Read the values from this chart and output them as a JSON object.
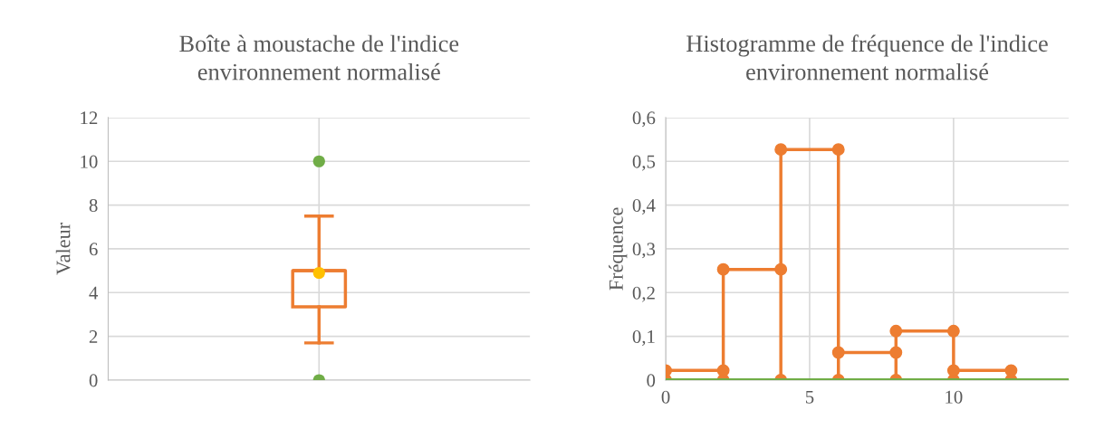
{
  "chart_data": [
    {
      "type": "box",
      "title": "Boîte à moustache de l'indice\nenvironnement normalisé",
      "ylabel": "Valeur",
      "categories": [
        null
      ],
      "series": [
        {
          "type": "box",
          "color": "#ed7d31",
          "boxes": [
            {
              "low": 1.7,
              "q1": 3.35,
              "median": 5.0,
              "q3": 5.0,
              "high": 7.5
            }
          ]
        },
        {
          "type": "scatter",
          "color": "#ffc000",
          "values": [
            4.9
          ]
        },
        {
          "type": "scatter",
          "color": "#70ad47",
          "values": [
            0
          ]
        },
        {
          "type": "scatter",
          "color": "#70ad47",
          "values": [
            10
          ]
        }
      ],
      "marker": "circle",
      "ylim": [
        0,
        12
      ],
      "yticks": [
        0,
        2,
        4,
        6,
        8,
        10,
        12
      ],
      "grid": true
    },
    {
      "type": "line",
      "title": "Histogramme de fréquence de l'indice\nenvironnement normalisé",
      "ylabel": "Fréquence",
      "marker": "circle",
      "series": [
        {
          "color": "#ed7d31",
          "x": [
            0,
            0,
            2,
            2,
            2,
            4,
            4,
            4,
            6,
            6,
            6,
            8,
            8,
            8,
            10,
            10,
            10,
            12,
            12
          ],
          "values": [
            0,
            0.022,
            0.022,
            0,
            0.253,
            0.253,
            0,
            0.527,
            0.527,
            0,
            0.063,
            0.063,
            0,
            0.112,
            0.112,
            0,
            0.022,
            0.022,
            0
          ]
        }
      ],
      "ref_lines": [
        {
          "axis": "y",
          "value": 0,
          "color": "#70ad47"
        }
      ],
      "xlim": [
        0,
        14
      ],
      "xticks": [
        0,
        5,
        10
      ],
      "ylim": [
        0,
        0.6
      ],
      "yticks": [
        {
          "value": 0,
          "label": "0"
        },
        {
          "value": 0.1,
          "label": "0,1"
        },
        {
          "value": 0.2,
          "label": "0,2"
        },
        {
          "value": 0.3,
          "label": "0,3"
        },
        {
          "value": 0.4,
          "label": "0,4"
        },
        {
          "value": 0.5,
          "label": "0,5"
        },
        {
          "value": 0.6,
          "label": "0,6"
        }
      ],
      "grid": true
    }
  ]
}
